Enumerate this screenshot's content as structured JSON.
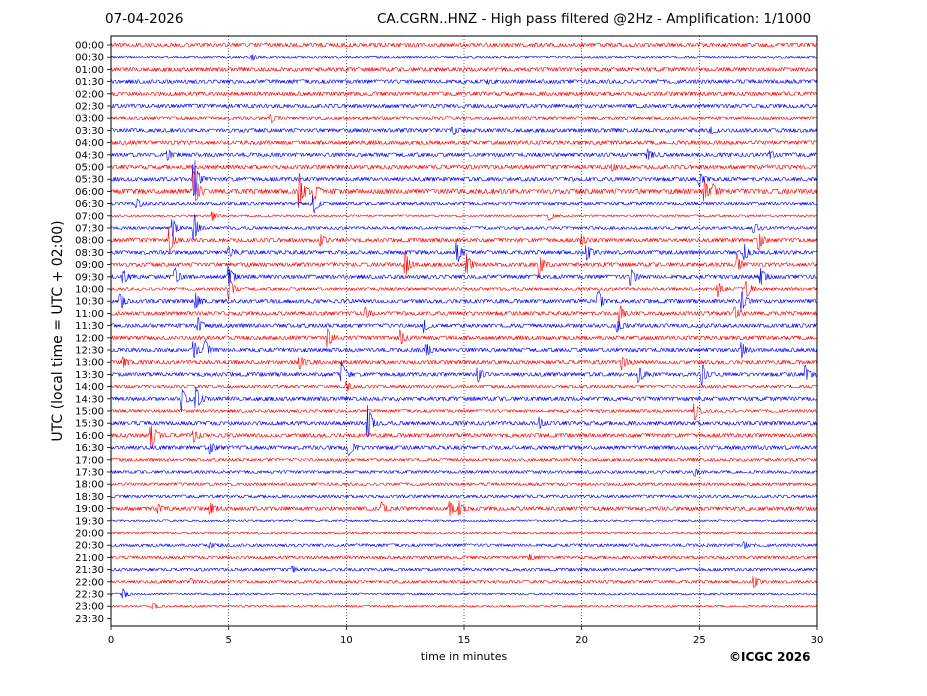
{
  "header": {
    "date": "07-04-2026",
    "title": "CA.CGRN..HNZ - High pass filtered @2Hz - Amplification: 1/1000"
  },
  "copyright": "©ICGC 2026",
  "colors": {
    "trace_a": "#ff0000",
    "trace_b": "#0000ff",
    "axes": "#000000"
  },
  "chart_data": {
    "type": "line",
    "title": "CA.CGRN..HNZ - High pass filtered @2Hz - Amplification: 1/1000",
    "xlabel": "time in minutes",
    "ylabel": "UTC (local time = UTC + 02:00)",
    "xlim": [
      0,
      30
    ],
    "xticks": [
      "0",
      "5",
      "10",
      "15",
      "20",
      "25",
      "30"
    ],
    "rows": [
      "00:00",
      "00:30",
      "01:00",
      "01:30",
      "02:00",
      "02:30",
      "03:00",
      "03:30",
      "04:00",
      "04:30",
      "05:00",
      "05:30",
      "06:00",
      "06:30",
      "07:00",
      "07:30",
      "08:00",
      "08:30",
      "09:00",
      "09:30",
      "10:00",
      "10:30",
      "11:00",
      "11:30",
      "12:00",
      "12:30",
      "13:00",
      "13:30",
      "14:00",
      "14:30",
      "15:00",
      "15:30",
      "16:00",
      "16:30",
      "17:00",
      "17:30",
      "18:00",
      "18:30",
      "19:00",
      "19:30",
      "20:00",
      "20:30",
      "21:00",
      "21:30",
      "22:00",
      "22:30",
      "23:00",
      "23:30"
    ],
    "row_colors": [
      "red",
      "blue",
      "red",
      "blue",
      "red",
      "blue",
      "red",
      "blue",
      "red",
      "blue",
      "red",
      "blue",
      "red",
      "blue",
      "red",
      "blue",
      "red",
      "blue",
      "red",
      "blue",
      "red",
      "blue",
      "red",
      "blue",
      "red",
      "blue",
      "red",
      "blue",
      "red",
      "blue",
      "red",
      "blue",
      "red",
      "blue",
      "red",
      "blue",
      "red",
      "blue",
      "red",
      "blue",
      "red",
      "blue",
      "red",
      "blue",
      "red",
      "blue",
      "red",
      "blue"
    ],
    "traced_rows": 47,
    "noise_level": [
      2,
      1,
      2,
      2,
      2,
      2,
      1.5,
      2,
      2,
      2,
      2,
      2,
      2.5,
      1.5,
      1,
      1.5,
      2,
      2,
      2,
      2,
      1.5,
      2,
      2,
      2,
      2,
      2,
      2,
      2,
      1.5,
      2,
      1.5,
      2,
      2,
      2,
      1.5,
      1.5,
      1.5,
      1.5,
      2,
      1,
      1,
      1.5,
      1.5,
      1.5,
      1.5,
      1,
      1
    ],
    "events": [
      {
        "row": 1,
        "t": 6.0,
        "amp": 3
      },
      {
        "row": 3,
        "t": 16.0,
        "amp": 2
      },
      {
        "row": 6,
        "t": 6.8,
        "amp": 4
      },
      {
        "row": 7,
        "t": 14.5,
        "amp": 4
      },
      {
        "row": 7,
        "t": 25.5,
        "amp": 4
      },
      {
        "row": 9,
        "t": 2.4,
        "amp": 5
      },
      {
        "row": 9,
        "t": 22.8,
        "amp": 5
      },
      {
        "row": 9,
        "t": 28.0,
        "amp": 4
      },
      {
        "row": 10,
        "t": 21.3,
        "amp": 4
      },
      {
        "row": 11,
        "t": 3.5,
        "amp": 30
      },
      {
        "row": 11,
        "t": 25.0,
        "amp": 8
      },
      {
        "row": 12,
        "t": 3.5,
        "amp": 30
      },
      {
        "row": 12,
        "t": 8.0,
        "amp": 20
      },
      {
        "row": 12,
        "t": 8.6,
        "amp": 12
      },
      {
        "row": 12,
        "t": 25.2,
        "amp": 12
      },
      {
        "row": 12,
        "t": 25.6,
        "amp": 6
      },
      {
        "row": 13,
        "t": 1.1,
        "amp": 5
      },
      {
        "row": 13,
        "t": 8.6,
        "amp": 12
      },
      {
        "row": 14,
        "t": 4.3,
        "amp": 5
      },
      {
        "row": 14,
        "t": 18.6,
        "amp": 6
      },
      {
        "row": 15,
        "t": 2.6,
        "amp": 12
      },
      {
        "row": 15,
        "t": 3.5,
        "amp": 18
      },
      {
        "row": 15,
        "t": 27.3,
        "amp": 7
      },
      {
        "row": 16,
        "t": 2.5,
        "amp": 14
      },
      {
        "row": 16,
        "t": 8.9,
        "amp": 6
      },
      {
        "row": 16,
        "t": 20.0,
        "amp": 6
      },
      {
        "row": 16,
        "t": 27.5,
        "amp": 12
      },
      {
        "row": 17,
        "t": 5.0,
        "amp": 6
      },
      {
        "row": 17,
        "t": 14.7,
        "amp": 12
      },
      {
        "row": 17,
        "t": 20.2,
        "amp": 10
      },
      {
        "row": 17,
        "t": 26.9,
        "amp": 10
      },
      {
        "row": 18,
        "t": 12.5,
        "amp": 14
      },
      {
        "row": 18,
        "t": 15.1,
        "amp": 12
      },
      {
        "row": 18,
        "t": 18.2,
        "amp": 12
      },
      {
        "row": 18,
        "t": 26.6,
        "amp": 10
      },
      {
        "row": 19,
        "t": 0.5,
        "amp": 8
      },
      {
        "row": 19,
        "t": 2.7,
        "amp": 10
      },
      {
        "row": 19,
        "t": 5.0,
        "amp": 12
      },
      {
        "row": 19,
        "t": 22.1,
        "amp": 10
      },
      {
        "row": 19,
        "t": 27.6,
        "amp": 10
      },
      {
        "row": 20,
        "t": 5.0,
        "amp": 14
      },
      {
        "row": 20,
        "t": 25.8,
        "amp": 8
      },
      {
        "row": 20,
        "t": 27.0,
        "amp": 10
      },
      {
        "row": 21,
        "t": 0.4,
        "amp": 10
      },
      {
        "row": 21,
        "t": 3.6,
        "amp": 8
      },
      {
        "row": 21,
        "t": 20.7,
        "amp": 12
      },
      {
        "row": 21,
        "t": 26.8,
        "amp": 12
      },
      {
        "row": 22,
        "t": 10.8,
        "amp": 5
      },
      {
        "row": 22,
        "t": 21.6,
        "amp": 10
      },
      {
        "row": 22,
        "t": 26.5,
        "amp": 8
      },
      {
        "row": 23,
        "t": 3.7,
        "amp": 8
      },
      {
        "row": 23,
        "t": 13.3,
        "amp": 6
      },
      {
        "row": 23,
        "t": 21.5,
        "amp": 8
      },
      {
        "row": 24,
        "t": 9.2,
        "amp": 10
      },
      {
        "row": 24,
        "t": 12.3,
        "amp": 8
      },
      {
        "row": 25,
        "t": 3.5,
        "amp": 10
      },
      {
        "row": 25,
        "t": 4.0,
        "amp": 10
      },
      {
        "row": 25,
        "t": 13.4,
        "amp": 8
      },
      {
        "row": 25,
        "t": 26.8,
        "amp": 8
      },
      {
        "row": 26,
        "t": 0.5,
        "amp": 6
      },
      {
        "row": 26,
        "t": 8.0,
        "amp": 8
      },
      {
        "row": 26,
        "t": 21.7,
        "amp": 7
      },
      {
        "row": 27,
        "t": 9.8,
        "amp": 12
      },
      {
        "row": 27,
        "t": 15.6,
        "amp": 8
      },
      {
        "row": 27,
        "t": 22.4,
        "amp": 10
      },
      {
        "row": 27,
        "t": 25.1,
        "amp": 12
      },
      {
        "row": 27,
        "t": 29.5,
        "amp": 10
      },
      {
        "row": 28,
        "t": 10.0,
        "amp": 6
      },
      {
        "row": 29,
        "t": 3.0,
        "amp": 12
      },
      {
        "row": 29,
        "t": 3.6,
        "amp": 14
      },
      {
        "row": 30,
        "t": 24.8,
        "amp": 10
      },
      {
        "row": 31,
        "t": 10.9,
        "amp": 22
      },
      {
        "row": 31,
        "t": 18.2,
        "amp": 5
      },
      {
        "row": 32,
        "t": 1.7,
        "amp": 18
      },
      {
        "row": 32,
        "t": 3.5,
        "amp": 6
      },
      {
        "row": 33,
        "t": 4.2,
        "amp": 6
      },
      {
        "row": 33,
        "t": 10.1,
        "amp": 10
      },
      {
        "row": 35,
        "t": 24.8,
        "amp": 4
      },
      {
        "row": 38,
        "t": 2.0,
        "amp": 5
      },
      {
        "row": 38,
        "t": 4.2,
        "amp": 5
      },
      {
        "row": 38,
        "t": 11.5,
        "amp": 6
      },
      {
        "row": 38,
        "t": 14.4,
        "amp": 8
      },
      {
        "row": 38,
        "t": 14.8,
        "amp": 8
      },
      {
        "row": 41,
        "t": 4.2,
        "amp": 3
      },
      {
        "row": 41,
        "t": 26.9,
        "amp": 4
      },
      {
        "row": 42,
        "t": 17.8,
        "amp": 3
      },
      {
        "row": 43,
        "t": 7.7,
        "amp": 4
      },
      {
        "row": 44,
        "t": 3.4,
        "amp": 3
      },
      {
        "row": 44,
        "t": 27.3,
        "amp": 8
      },
      {
        "row": 45,
        "t": 0.5,
        "amp": 5
      },
      {
        "row": 46,
        "t": 1.8,
        "amp": 4
      }
    ]
  }
}
